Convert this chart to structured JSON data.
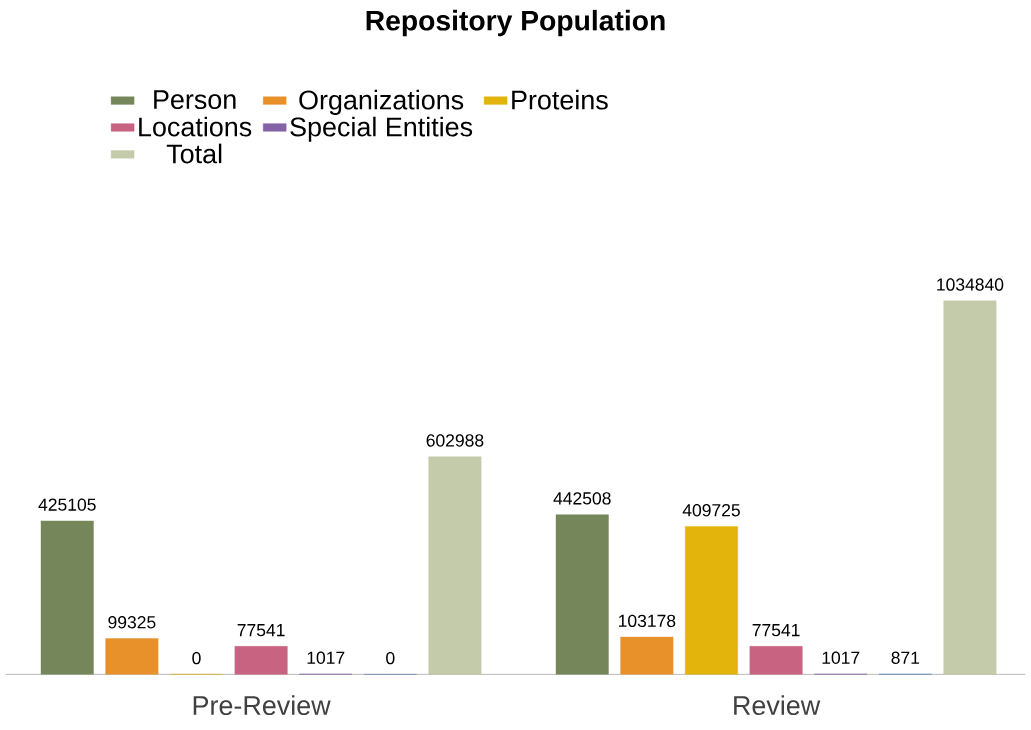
{
  "chart_data": {
    "type": "bar",
    "title": "Repository Population",
    "categories": [
      "Pre-Review",
      "Review"
    ],
    "series": [
      {
        "name": "Person",
        "color": "#75875a",
        "values": [
          425105,
          442508
        ]
      },
      {
        "name": "Organizations",
        "color": "#e8902a",
        "values": [
          99325,
          103178
        ]
      },
      {
        "name": "Proteins",
        "color": "#e3b40c",
        "values": [
          0,
          409725
        ]
      },
      {
        "name": "Locations",
        "color": "#c86482",
        "values": [
          77541,
          77541
        ]
      },
      {
        "name": "Special Entities",
        "color": "#8462a6",
        "values": [
          1017,
          1017
        ]
      },
      {
        "color": "#5a84b8",
        "values": [
          0,
          871
        ]
      },
      {
        "name": "Total",
        "color": "#c3cbaa",
        "values": [
          602988,
          1034840
        ]
      }
    ],
    "data_labels": true,
    "legend": "top"
  }
}
